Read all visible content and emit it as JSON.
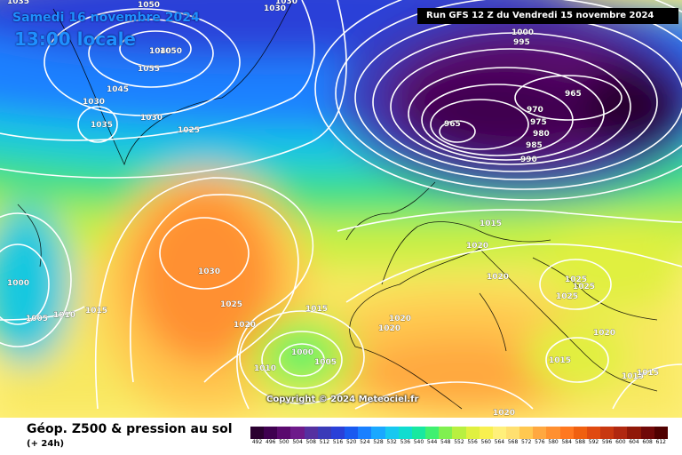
{
  "header": {
    "date": "Samedi 16 novembre 2024",
    "time": "13:00 locale",
    "run": "Run GFS 12 Z du Vendredi 15 novembre 2024"
  },
  "copyright": "Copyright © 2024 Meteociel.fr",
  "footer": {
    "title": "Géop. Z500 & pression au sol",
    "subtitle": "(+ 24h)"
  },
  "scale": {
    "labels": [
      "492",
      "496",
      "500",
      "504",
      "508",
      "512",
      "516",
      "520",
      "524",
      "528",
      "532",
      "536",
      "540",
      "544",
      "548",
      "552",
      "556",
      "560",
      "564",
      "568",
      "572",
      "576",
      "580",
      "584",
      "588",
      "592",
      "596",
      "600",
      "604",
      "608",
      "612"
    ],
    "colors": [
      "#2a0030",
      "#3f0050",
      "#5a0a6e",
      "#6e1a8a",
      "#5530a0",
      "#3a3ab8",
      "#2a40d8",
      "#1a5af0",
      "#1a80ff",
      "#1aa8ff",
      "#18c8f0",
      "#10dcd0",
      "#18e8a0",
      "#40f070",
      "#80f050",
      "#b8f040",
      "#e0f040",
      "#f8f050",
      "#fff07a",
      "#ffe070",
      "#ffc850",
      "#ffa840",
      "#ff9030",
      "#ff7820",
      "#f06010",
      "#e04a10",
      "#c83810",
      "#b02810",
      "#901808",
      "#700808",
      "#500000"
    ]
  },
  "isobar_labels": [
    {
      "text": "1050"
    },
    {
      "text": "1030"
    },
    {
      "text": "1030"
    },
    {
      "text": "1035"
    },
    {
      "text": "1040"
    },
    {
      "text": "1050"
    },
    {
      "text": "1055"
    },
    {
      "text": "1045"
    },
    {
      "text": "1030"
    },
    {
      "text": "1035"
    },
    {
      "text": "1030"
    },
    {
      "text": "1025"
    },
    {
      "text": "1000"
    },
    {
      "text": "995"
    },
    {
      "text": "965"
    },
    {
      "text": "965"
    },
    {
      "text": "970"
    },
    {
      "text": "975"
    },
    {
      "text": "980"
    },
    {
      "text": "985"
    },
    {
      "text": "990"
    },
    {
      "text": "1015"
    },
    {
      "text": "1020"
    },
    {
      "text": "1020"
    },
    {
      "text": "1025"
    },
    {
      "text": "1025"
    },
    {
      "text": "1025"
    },
    {
      "text": "1030"
    },
    {
      "text": "1025"
    },
    {
      "text": "1020"
    },
    {
      "text": "1015"
    },
    {
      "text": "1020"
    },
    {
      "text": "1020"
    },
    {
      "text": "1000"
    },
    {
      "text": "1005"
    },
    {
      "text": "1010"
    },
    {
      "text": "1015"
    },
    {
      "text": "1010"
    },
    {
      "text": "1000"
    },
    {
      "text": "1005"
    },
    {
      "text": "1020"
    },
    {
      "text": "1015"
    },
    {
      "text": "1015"
    },
    {
      "text": "1015"
    },
    {
      "text": "1020"
    }
  ]
}
